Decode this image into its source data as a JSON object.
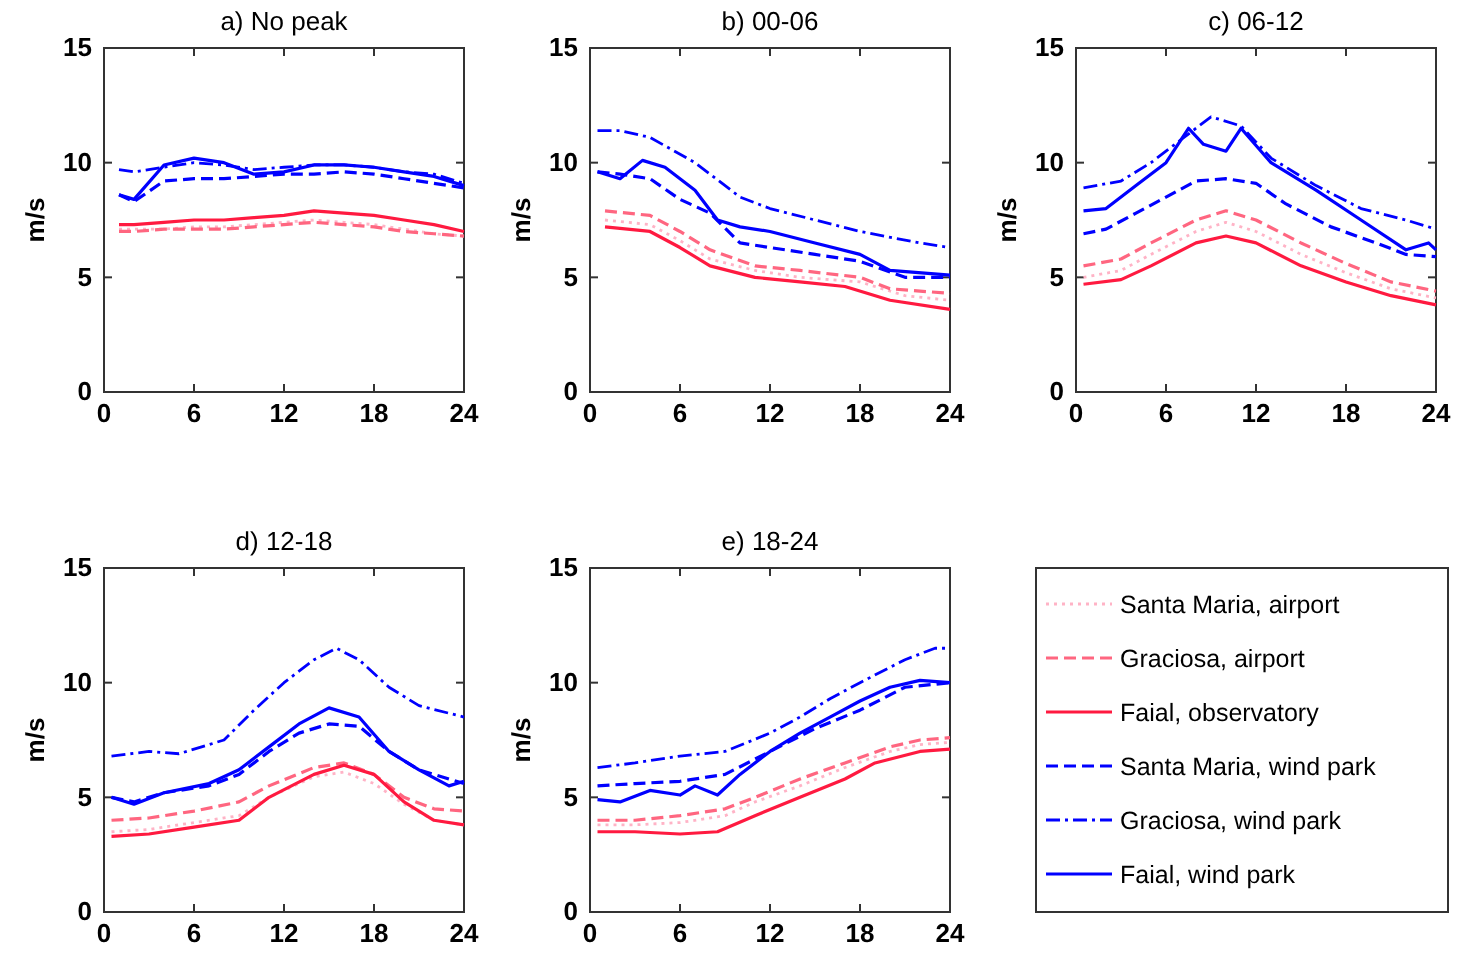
{
  "chart_data": [
    {
      "type": "line",
      "title": "a) No peak",
      "ylabel": "m/s",
      "xlim": [
        0,
        24
      ],
      "ylim": [
        0,
        15
      ],
      "xticks": [
        0,
        6,
        12,
        18,
        24
      ],
      "yticks": [
        0,
        5,
        10,
        15
      ],
      "grid": false,
      "series": [
        {
          "color": "#ffb3c6",
          "line_style": "dotted",
          "x": [
            1,
            2,
            4,
            6,
            8,
            10,
            12,
            14,
            16,
            18,
            20,
            22,
            24
          ],
          "values": [
            7.1,
            7.1,
            7.1,
            7.2,
            7.2,
            7.3,
            7.4,
            7.5,
            7.4,
            7.3,
            7.1,
            6.9,
            6.8
          ]
        },
        {
          "color": "#ff6680",
          "line_style": "dashed",
          "x": [
            1,
            2,
            4,
            6,
            8,
            10,
            12,
            14,
            16,
            18,
            20,
            22,
            24
          ],
          "values": [
            7.0,
            7.0,
            7.1,
            7.1,
            7.1,
            7.2,
            7.3,
            7.4,
            7.3,
            7.2,
            7.0,
            6.9,
            6.8
          ]
        },
        {
          "color": "#ff1a40",
          "line_style": "solid",
          "x": [
            1,
            2,
            4,
            6,
            8,
            10,
            12,
            14,
            16,
            18,
            20,
            22,
            24
          ],
          "values": [
            7.3,
            7.3,
            7.4,
            7.5,
            7.5,
            7.6,
            7.7,
            7.9,
            7.8,
            7.7,
            7.5,
            7.3,
            7.0
          ]
        },
        {
          "color": "#0000ff",
          "line_style": "dashed",
          "x": [
            1,
            2,
            4,
            6,
            8,
            10,
            12,
            14,
            16,
            18,
            20,
            22,
            24
          ],
          "values": [
            8.6,
            8.3,
            9.2,
            9.3,
            9.3,
            9.4,
            9.5,
            9.5,
            9.6,
            9.5,
            9.3,
            9.1,
            8.9
          ]
        },
        {
          "color": "#0000ff",
          "line_style": "dashdot",
          "x": [
            1,
            2,
            4,
            6,
            8,
            10,
            12,
            14,
            16,
            18,
            20,
            22,
            24
          ],
          "values": [
            9.7,
            9.6,
            9.8,
            10.0,
            9.9,
            9.7,
            9.8,
            9.9,
            9.9,
            9.8,
            9.6,
            9.5,
            9.1
          ]
        },
        {
          "color": "#0000ff",
          "line_style": "solid",
          "x": [
            1,
            2,
            4,
            6,
            8,
            10,
            12,
            14,
            16,
            18,
            20,
            22,
            24
          ],
          "values": [
            8.6,
            8.4,
            9.9,
            10.2,
            10.0,
            9.5,
            9.6,
            9.9,
            9.9,
            9.8,
            9.6,
            9.4,
            9.0
          ]
        }
      ]
    },
    {
      "type": "line",
      "title": "b) 00-06",
      "ylabel": "m/s",
      "xlim": [
        0,
        24
      ],
      "ylim": [
        0,
        15
      ],
      "xticks": [
        0,
        6,
        12,
        18,
        24
      ],
      "yticks": [
        0,
        5,
        10,
        15
      ],
      "grid": false,
      "series": [
        {
          "color": "#ffb3c6",
          "line_style": "dotted",
          "x": [
            1,
            4,
            6,
            8,
            11,
            14,
            18,
            21,
            24
          ],
          "values": [
            7.5,
            7.3,
            6.6,
            5.8,
            5.3,
            5.0,
            4.8,
            4.2,
            4.0
          ]
        },
        {
          "color": "#ff6680",
          "line_style": "dashed",
          "x": [
            1,
            4,
            6,
            8,
            11,
            14,
            18,
            20,
            24
          ],
          "values": [
            7.9,
            7.7,
            7.0,
            6.2,
            5.5,
            5.3,
            5.0,
            4.5,
            4.3
          ]
        },
        {
          "color": "#ff1a40",
          "line_style": "solid",
          "x": [
            1,
            4,
            6,
            8,
            11,
            14,
            17,
            20,
            24
          ],
          "values": [
            7.2,
            7.0,
            6.3,
            5.5,
            5.0,
            4.8,
            4.6,
            4.0,
            3.6
          ]
        },
        {
          "color": "#0000ff",
          "line_style": "dashed",
          "x": [
            0.5,
            2,
            4,
            6,
            8,
            10,
            12,
            15,
            18,
            21,
            24
          ],
          "values": [
            9.6,
            9.5,
            9.3,
            8.4,
            7.8,
            6.5,
            6.3,
            6.0,
            5.7,
            5.0,
            5.0
          ]
        },
        {
          "color": "#0000ff",
          "line_style": "dashdot",
          "x": [
            0.5,
            2,
            4,
            7,
            10,
            12,
            15,
            18,
            22,
            24
          ],
          "values": [
            11.4,
            11.4,
            11.1,
            10.0,
            8.5,
            8.0,
            7.5,
            7.0,
            6.5,
            6.3
          ]
        },
        {
          "color": "#0000ff",
          "line_style": "solid",
          "x": [
            0.5,
            2,
            3.5,
            5,
            7,
            8.5,
            10,
            12,
            15,
            18,
            20,
            24
          ],
          "values": [
            9.6,
            9.3,
            10.1,
            9.8,
            8.8,
            7.5,
            7.2,
            7.0,
            6.5,
            6.0,
            5.3,
            5.1
          ]
        }
      ]
    },
    {
      "type": "line",
      "title": "c) 06-12",
      "ylabel": "m/s",
      "xlim": [
        0,
        24
      ],
      "ylim": [
        0,
        15
      ],
      "xticks": [
        0,
        6,
        12,
        18,
        24
      ],
      "yticks": [
        0,
        5,
        10,
        15
      ],
      "grid": false,
      "series": [
        {
          "color": "#ffb3c6",
          "line_style": "dotted",
          "x": [
            0.5,
            3,
            5,
            8,
            10,
            12,
            15,
            18,
            21,
            24
          ],
          "values": [
            5.0,
            5.3,
            6.0,
            7.0,
            7.4,
            7.0,
            6.0,
            5.2,
            4.5,
            4.1
          ]
        },
        {
          "color": "#ff6680",
          "line_style": "dashed",
          "x": [
            0.5,
            3,
            5,
            8,
            10,
            12,
            15,
            18,
            21,
            24
          ],
          "values": [
            5.5,
            5.8,
            6.5,
            7.5,
            7.9,
            7.5,
            6.5,
            5.6,
            4.8,
            4.4
          ]
        },
        {
          "color": "#ff1a40",
          "line_style": "solid",
          "x": [
            0.5,
            3,
            5,
            8,
            10,
            12,
            15,
            18,
            21,
            24
          ],
          "values": [
            4.7,
            4.9,
            5.5,
            6.5,
            6.8,
            6.5,
            5.5,
            4.8,
            4.2,
            3.8
          ]
        },
        {
          "color": "#0000ff",
          "line_style": "dashed",
          "x": [
            0.5,
            2,
            4,
            6,
            8,
            10,
            12,
            14,
            17,
            20,
            22,
            24
          ],
          "values": [
            6.9,
            7.1,
            7.8,
            8.5,
            9.2,
            9.3,
            9.1,
            8.2,
            7.2,
            6.5,
            6.0,
            5.9
          ]
        },
        {
          "color": "#0000ff",
          "line_style": "dashdot",
          "x": [
            0.5,
            3,
            5,
            7,
            9,
            11,
            13,
            16,
            19,
            22,
            24
          ],
          "values": [
            8.9,
            9.2,
            10.0,
            11.0,
            12.0,
            11.6,
            10.2,
            9.0,
            8.0,
            7.5,
            7.1
          ]
        },
        {
          "color": "#0000ff",
          "line_style": "solid",
          "x": [
            0.5,
            2,
            4,
            6,
            7.5,
            8.5,
            10,
            11,
            13,
            16,
            19,
            22,
            23.5,
            24
          ],
          "values": [
            7.9,
            8.0,
            9.0,
            10.0,
            11.5,
            10.8,
            10.5,
            11.5,
            10.0,
            8.8,
            7.5,
            6.2,
            6.5,
            6.2
          ]
        }
      ]
    },
    {
      "type": "line",
      "title": "d) 12-18",
      "ylabel": "m/s",
      "xlim": [
        0,
        24
      ],
      "ylim": [
        0,
        15
      ],
      "xticks": [
        0,
        6,
        12,
        18,
        24
      ],
      "yticks": [
        0,
        5,
        10,
        15
      ],
      "grid": false,
      "series": [
        {
          "color": "#ffb3c6",
          "line_style": "dotted",
          "x": [
            0.5,
            3,
            6,
            9,
            11,
            14,
            16,
            18,
            20,
            22,
            24
          ],
          "values": [
            3.5,
            3.6,
            3.9,
            4.2,
            5.0,
            5.9,
            6.1,
            5.6,
            4.7,
            4.0,
            3.8
          ]
        },
        {
          "color": "#ff6680",
          "line_style": "dashed",
          "x": [
            0.5,
            3,
            6,
            9,
            11,
            14,
            16,
            18,
            20,
            22,
            24
          ],
          "values": [
            4.0,
            4.1,
            4.4,
            4.8,
            5.5,
            6.3,
            6.5,
            6.0,
            5.0,
            4.5,
            4.4
          ]
        },
        {
          "color": "#ff1a40",
          "line_style": "solid",
          "x": [
            0.5,
            3,
            6,
            9,
            11,
            14,
            16,
            18,
            20,
            22,
            24
          ],
          "values": [
            3.3,
            3.4,
            3.7,
            4.0,
            5.0,
            6.0,
            6.4,
            6.0,
            4.8,
            4.0,
            3.8
          ]
        },
        {
          "color": "#0000ff",
          "line_style": "dashed",
          "x": [
            0.5,
            2,
            4,
            7,
            9,
            11,
            13,
            15,
            17,
            19,
            21,
            24
          ],
          "values": [
            5.0,
            4.8,
            5.2,
            5.5,
            6.0,
            7.0,
            7.8,
            8.2,
            8.1,
            7.0,
            6.2,
            5.6
          ]
        },
        {
          "color": "#0000ff",
          "line_style": "dashdot",
          "x": [
            0.5,
            3,
            5,
            8,
            10,
            12,
            14,
            15.5,
            17,
            19,
            21,
            24
          ],
          "values": [
            6.8,
            7.0,
            6.9,
            7.5,
            8.8,
            10.0,
            11.0,
            11.5,
            11.0,
            9.8,
            9.0,
            8.5
          ]
        },
        {
          "color": "#0000ff",
          "line_style": "solid",
          "x": [
            0.5,
            2,
            4,
            7,
            9,
            11,
            13,
            15,
            17,
            19,
            21,
            23,
            24
          ],
          "values": [
            5.0,
            4.7,
            5.2,
            5.6,
            6.2,
            7.2,
            8.2,
            8.9,
            8.5,
            7.0,
            6.2,
            5.5,
            5.7
          ]
        }
      ]
    },
    {
      "type": "line",
      "title": "e) 18-24",
      "ylabel": "m/s",
      "xlim": [
        0,
        24
      ],
      "ylim": [
        0,
        15
      ],
      "xticks": [
        0,
        6,
        12,
        18,
        24
      ],
      "yticks": [
        0,
        5,
        10,
        15
      ],
      "grid": false,
      "legend": "right",
      "series": [
        {
          "name": "Santa Maria, airport",
          "color": "#ffb3c6",
          "line_style": "dotted",
          "x": [
            0.5,
            3,
            6,
            9,
            11,
            14,
            17,
            20,
            22,
            24
          ],
          "values": [
            3.8,
            3.8,
            3.9,
            4.2,
            4.8,
            5.5,
            6.3,
            7.0,
            7.3,
            7.4
          ]
        },
        {
          "name": "Graciosa, airport",
          "color": "#ff6680",
          "line_style": "dashed",
          "x": [
            0.5,
            3,
            6,
            9,
            11,
            14,
            17,
            20,
            22,
            24
          ],
          "values": [
            4.0,
            4.0,
            4.2,
            4.5,
            5.0,
            5.8,
            6.5,
            7.2,
            7.5,
            7.6
          ]
        },
        {
          "name": "Faial, observatory",
          "color": "#ff1a40",
          "line_style": "solid",
          "x": [
            0.5,
            3,
            6,
            8.5,
            11,
            14,
            17,
            19,
            22,
            24
          ],
          "values": [
            3.5,
            3.5,
            3.4,
            3.5,
            4.2,
            5.0,
            5.8,
            6.5,
            7.0,
            7.1
          ]
        },
        {
          "name": "Santa Maria, wind park",
          "color": "#0000ff",
          "line_style": "dashed",
          "x": [
            0.5,
            3,
            6,
            9,
            12,
            15,
            18,
            21,
            24
          ],
          "values": [
            5.5,
            5.6,
            5.7,
            6.0,
            7.0,
            8.0,
            8.8,
            9.8,
            10.0
          ]
        },
        {
          "name": "Graciosa, wind park",
          "color": "#0000ff",
          "line_style": "dashdot",
          "x": [
            0.5,
            3,
            6,
            9,
            12,
            14,
            16,
            18,
            21,
            23,
            24
          ],
          "values": [
            6.3,
            6.5,
            6.8,
            7.0,
            7.8,
            8.5,
            9.3,
            10.0,
            11.0,
            11.5,
            11.5
          ]
        },
        {
          "name": "Faial, wind park",
          "color": "#0000ff",
          "line_style": "solid",
          "x": [
            0.5,
            2,
            4,
            6,
            7,
            8.5,
            10,
            12,
            14,
            16,
            18,
            20,
            22,
            24
          ],
          "values": [
            4.9,
            4.8,
            5.3,
            5.1,
            5.5,
            5.1,
            6.0,
            7.0,
            7.8,
            8.5,
            9.2,
            9.8,
            10.1,
            10.0
          ]
        }
      ]
    }
  ]
}
